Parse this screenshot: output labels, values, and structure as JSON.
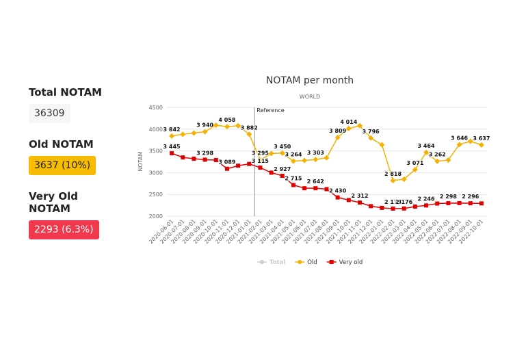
{
  "stats": [
    {
      "label": "Total NOTAM",
      "value": "36309"
    },
    {
      "label": "Old NOTAM",
      "value": "3637 (10%)"
    },
    {
      "label": "Very Old NOTAM",
      "value": "2293 (6.3%)"
    }
  ],
  "chart_data": {
    "type": "line",
    "title": "NOTAM per month",
    "subtitle": "WORLD",
    "y_label": "NOTAM",
    "categories": [
      "2020-06-01",
      "2020-07-01",
      "2020-08-01",
      "2020-09-01",
      "2020-10-01",
      "2020-11-01",
      "2020-12-01",
      "2021-01-01",
      "2021-02-01",
      "2021-03-01",
      "2021-04-01",
      "2021-05-01",
      "2021-06-01",
      "2021-07-01",
      "2021-08-01",
      "2021-09-01",
      "2021-10-01",
      "2021-11-01",
      "2021-12-01",
      "2022-01-01",
      "2022-02-01",
      "2022-03-01",
      "2022-04-01",
      "2022-05-01",
      "2022-06-01",
      "2022-07-01",
      "2022-08-01",
      "2022-09-01",
      "2022-10-01"
    ],
    "ylim": [
      2000,
      4500
    ],
    "yticks": [
      2000,
      2500,
      3000,
      3500,
      4000,
      4500
    ],
    "grid": true,
    "annotation": {
      "text": "Reference",
      "x": "2021-02-01"
    },
    "series": [
      {
        "name": "Total",
        "color": "#cccccc",
        "hidden": true
      },
      {
        "name": "Old",
        "color": "#f5b000",
        "marker": "diamond",
        "values": [
          3842,
          3880,
          3910,
          3940,
          4090,
          4058,
          4080,
          3882,
          3295,
          3440,
          3450,
          3264,
          3280,
          3303,
          3340,
          3809,
          4014,
          4080,
          3796,
          3640,
          2818,
          2850,
          3071,
          3464,
          3262,
          3290,
          3646,
          3720,
          3637
        ],
        "value_labels": [
          "3 842",
          null,
          null,
          "3 940",
          null,
          "4 058",
          null,
          "3 882",
          "3 295",
          null,
          "3 450",
          "3 264",
          null,
          "3 303",
          null,
          "3 809",
          "4 014",
          null,
          "3 796",
          null,
          "2 818",
          null,
          "3 071",
          "3 464",
          "3 262",
          null,
          "3 646",
          null,
          "3 637"
        ]
      },
      {
        "name": "Very old",
        "color": "#e00000",
        "marker": "square",
        "values": [
          3445,
          3350,
          3320,
          3298,
          3290,
          3089,
          3160,
          3200,
          3115,
          3000,
          2927,
          2715,
          2642,
          2642,
          2620,
          2430,
          2370,
          2312,
          2230,
          2190,
          2173,
          2176,
          2220,
          2246,
          2290,
          2298,
          2300,
          2296,
          2293
        ],
        "value_labels": [
          "3 445",
          null,
          null,
          "3 298",
          null,
          "3 089",
          null,
          null,
          "3 115",
          null,
          "2 927",
          "2 715",
          null,
          "2 642",
          null,
          "2 430",
          null,
          "2 312",
          null,
          null,
          "2 173",
          "2 176",
          null,
          "2 246",
          null,
          "2 298",
          null,
          "2 296",
          null
        ]
      }
    ]
  }
}
